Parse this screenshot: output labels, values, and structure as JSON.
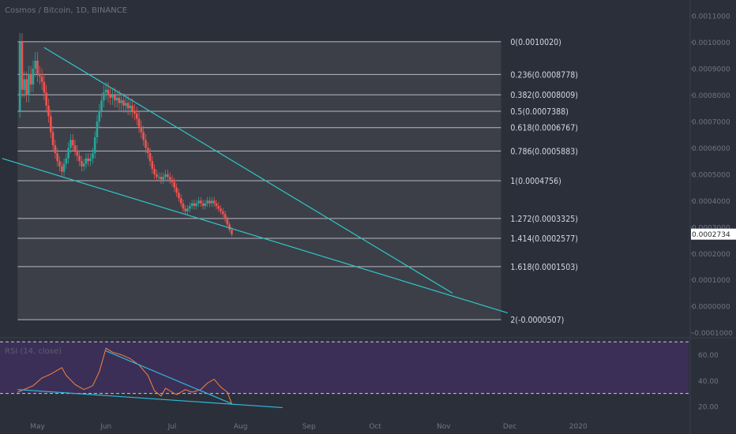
{
  "header": {
    "title": "Cosmos / Bitcoin, 1D, BINANCE"
  },
  "colors": {
    "background": "#2b2f3a",
    "fib_zone": "#3c3f48",
    "fib_line": "#b7bac2",
    "bull_candle": "#26a69a",
    "bear_candle": "#ef5350",
    "trendline": "#2fc7c9",
    "rsi_band": "#3b2f58",
    "rsi_line": "#f58534",
    "rsi_trendline": "#2fb8d8",
    "price_tag_bg": "#ffffff"
  },
  "chart_data": [
    {
      "type": "candlestick",
      "title": "Cosmos / Bitcoin, 1D, BINANCE",
      "y_axis": {
        "range": [
          -0.00011,
          0.00116
        ],
        "tick_labels": [
          "0.0011000",
          "0.0010000",
          "0.0009000",
          "0.0008000",
          "0.0007000",
          "0.0006000",
          "0.0005000",
          "0.0004000",
          "0.0003000",
          "0.0002000",
          "0.0001000",
          "0.0000000",
          "-0.0001000"
        ],
        "ticks": [
          0.0011,
          0.001,
          0.0009,
          0.0008,
          0.0007,
          0.0006,
          0.0005,
          0.0004,
          0.0003,
          0.0002,
          0.0001,
          0.0,
          -0.0001
        ]
      },
      "x_axis": {
        "labels": [
          "May",
          "Jun",
          "Jul",
          "Aug",
          "Sep",
          "Oct",
          "Nov",
          "Dec",
          "2020"
        ],
        "label_dates": [
          "2019-05-01",
          "2019-06-01",
          "2019-07-01",
          "2019-08-01",
          "2019-09-01",
          "2019-10-01",
          "2019-11-01",
          "2019-12-01",
          "2020-01-01"
        ],
        "range": [
          "2019-04-14",
          "2020-02-20"
        ]
      },
      "current_price": {
        "label": "0.0002734",
        "value": 0.0002734
      },
      "fib_retracement": {
        "start_date": "2019-04-22",
        "end_date": "2019-11-27",
        "levels": [
          {
            "ratio": 0,
            "price": 0.001002,
            "label": "0(0.0010020)"
          },
          {
            "ratio": 0.236,
            "price": 0.0008778,
            "label": "0.236(0.0008778)"
          },
          {
            "ratio": 0.382,
            "price": 0.0008009,
            "label": "0.382(0.0008009)"
          },
          {
            "ratio": 0.5,
            "price": 0.0007388,
            "label": "0.5(0.0007388)"
          },
          {
            "ratio": 0.618,
            "price": 0.0006767,
            "label": "0.618(0.0006767)"
          },
          {
            "ratio": 0.786,
            "price": 0.0005883,
            "label": "0.786(0.0005883)"
          },
          {
            "ratio": 1,
            "price": 0.0004756,
            "label": "1(0.0004756)"
          },
          {
            "ratio": 1.272,
            "price": 0.0003325,
            "label": "1.272(0.0003325)"
          },
          {
            "ratio": 1.414,
            "price": 0.0002577,
            "label": "1.414(0.0002577)"
          },
          {
            "ratio": 1.618,
            "price": 0.0001503,
            "label": "1.618(0.0001503)"
          },
          {
            "ratio": 2,
            "price": -5.07e-05,
            "label": "2(-0.0000507)"
          }
        ]
      },
      "trendlines": [
        {
          "name": "upper",
          "start": [
            "2019-05-04",
            0.00098
          ],
          "end": [
            "2019-11-05",
            5e-05
          ]
        },
        {
          "name": "lower",
          "start": [
            "2019-04-15",
            0.00056
          ],
          "end": [
            "2019-11-30",
            -2.5e-05
          ]
        }
      ],
      "ohlc_path": [
        [
          "2019-04-22",
          0.00074
        ],
        [
          "2019-04-23",
          0.001
        ],
        [
          "2019-04-24",
          0.00082
        ],
        [
          "2019-04-25",
          0.00086
        ],
        [
          "2019-04-26",
          0.0008
        ],
        [
          "2019-04-27",
          0.00088
        ],
        [
          "2019-04-28",
          0.00084
        ],
        [
          "2019-04-29",
          0.0009
        ],
        [
          "2019-04-30",
          0.00093
        ],
        [
          "2019-05-01",
          0.00088
        ],
        [
          "2019-05-02",
          0.00087
        ],
        [
          "2019-05-03",
          0.00085
        ],
        [
          "2019-05-04",
          0.00081
        ],
        [
          "2019-05-05",
          0.00076
        ],
        [
          "2019-05-06",
          0.00072
        ],
        [
          "2019-05-07",
          0.00066
        ],
        [
          "2019-05-08",
          0.00061
        ],
        [
          "2019-05-09",
          0.00058
        ],
        [
          "2019-05-10",
          0.00055
        ],
        [
          "2019-05-11",
          0.00053
        ],
        [
          "2019-05-12",
          0.00051
        ],
        [
          "2019-05-13",
          0.00054
        ],
        [
          "2019-05-14",
          0.00056
        ],
        [
          "2019-05-15",
          0.0006
        ],
        [
          "2019-05-16",
          0.00063
        ],
        [
          "2019-05-17",
          0.00061
        ],
        [
          "2019-05-18",
          0.00059
        ],
        [
          "2019-05-19",
          0.00057
        ],
        [
          "2019-05-20",
          0.00055
        ],
        [
          "2019-05-21",
          0.00053
        ],
        [
          "2019-05-22",
          0.00054
        ],
        [
          "2019-05-23",
          0.00056
        ],
        [
          "2019-05-24",
          0.00055
        ],
        [
          "2019-05-25",
          0.00056
        ],
        [
          "2019-05-26",
          0.00058
        ],
        [
          "2019-05-27",
          0.00064
        ],
        [
          "2019-05-28",
          0.0007
        ],
        [
          "2019-05-29",
          0.00074
        ],
        [
          "2019-05-30",
          0.00078
        ],
        [
          "2019-05-31",
          0.00081
        ],
        [
          "2019-06-01",
          0.00082
        ],
        [
          "2019-06-02",
          0.0008
        ],
        [
          "2019-06-03",
          0.00079
        ],
        [
          "2019-06-04",
          0.0008
        ],
        [
          "2019-06-05",
          0.00078
        ],
        [
          "2019-06-06",
          0.00079
        ],
        [
          "2019-06-07",
          0.00077
        ],
        [
          "2019-06-08",
          0.00078
        ],
        [
          "2019-06-09",
          0.00076
        ],
        [
          "2019-06-10",
          0.00077
        ],
        [
          "2019-06-11",
          0.00075
        ],
        [
          "2019-06-12",
          0.00076
        ],
        [
          "2019-06-13",
          0.00074
        ],
        [
          "2019-06-14",
          0.00073
        ],
        [
          "2019-06-15",
          0.00071
        ],
        [
          "2019-06-16",
          0.00068
        ],
        [
          "2019-06-17",
          0.00066
        ],
        [
          "2019-06-18",
          0.00063
        ],
        [
          "2019-06-19",
          0.0006
        ],
        [
          "2019-06-20",
          0.00058
        ],
        [
          "2019-06-21",
          0.00055
        ],
        [
          "2019-06-22",
          0.00052
        ],
        [
          "2019-06-23",
          0.0005
        ],
        [
          "2019-06-24",
          0.00049
        ],
        [
          "2019-06-25",
          0.00049
        ],
        [
          "2019-06-26",
          0.00048
        ],
        [
          "2019-06-27",
          0.00049
        ],
        [
          "2019-06-28",
          0.0005
        ],
        [
          "2019-06-29",
          0.00049
        ],
        [
          "2019-06-30",
          0.00048
        ],
        [
          "2019-07-01",
          0.00047
        ],
        [
          "2019-07-02",
          0.00045
        ],
        [
          "2019-07-03",
          0.00043
        ],
        [
          "2019-07-04",
          0.00041
        ],
        [
          "2019-07-05",
          0.00039
        ],
        [
          "2019-07-06",
          0.00037
        ],
        [
          "2019-07-07",
          0.00036
        ],
        [
          "2019-07-08",
          0.00037
        ],
        [
          "2019-07-09",
          0.00038
        ],
        [
          "2019-07-10",
          0.00039
        ],
        [
          "2019-07-11",
          0.00038
        ],
        [
          "2019-07-12",
          0.00039
        ],
        [
          "2019-07-13",
          0.0004
        ],
        [
          "2019-07-14",
          0.00039
        ],
        [
          "2019-07-15",
          0.00038
        ],
        [
          "2019-07-16",
          0.00039
        ],
        [
          "2019-07-17",
          0.0004
        ],
        [
          "2019-07-18",
          0.00039
        ],
        [
          "2019-07-19",
          0.0004
        ],
        [
          "2019-07-20",
          0.00039
        ],
        [
          "2019-07-21",
          0.00038
        ],
        [
          "2019-07-22",
          0.00037
        ],
        [
          "2019-07-23",
          0.00036
        ],
        [
          "2019-07-24",
          0.00035
        ],
        [
          "2019-07-25",
          0.00033
        ],
        [
          "2019-07-26",
          0.00031
        ],
        [
          "2019-07-27",
          0.00029
        ],
        [
          "2019-07-28",
          0.000273
        ]
      ]
    },
    {
      "type": "line",
      "title": "RSI (14, close)",
      "y_axis": {
        "range": [
          12,
          72
        ],
        "tick_labels": [
          "60.00",
          "40.00",
          "20.00"
        ],
        "ticks": [
          60,
          40,
          20
        ],
        "band": [
          30,
          70
        ]
      },
      "series": [
        {
          "name": "RSI (14, close)",
          "x": [
            "2019-04-22",
            "2019-04-29",
            "2019-05-03",
            "2019-05-07",
            "2019-05-12",
            "2019-05-14",
            "2019-05-18",
            "2019-05-22",
            "2019-05-26",
            "2019-05-29",
            "2019-06-01",
            "2019-06-04",
            "2019-06-08",
            "2019-06-12",
            "2019-06-16",
            "2019-06-20",
            "2019-06-23",
            "2019-06-26",
            "2019-06-28",
            "2019-07-01",
            "2019-07-03",
            "2019-07-07",
            "2019-07-10",
            "2019-07-14",
            "2019-07-17",
            "2019-07-20",
            "2019-07-23",
            "2019-07-26",
            "2019-07-28"
          ],
          "values": [
            31,
            36,
            42,
            45,
            50,
            44,
            37,
            33,
            36,
            47,
            65,
            62,
            60,
            57,
            52,
            44,
            32,
            28,
            34,
            31,
            29,
            33,
            31,
            33,
            38,
            41,
            35,
            31,
            22
          ]
        }
      ],
      "trendlines": [
        {
          "name": "rsi-upper",
          "start": [
            "2019-06-01",
            63
          ],
          "end": [
            "2019-07-28",
            22
          ]
        },
        {
          "name": "rsi-lower",
          "start": [
            "2019-04-22",
            33
          ],
          "end": [
            "2019-08-20",
            19
          ]
        }
      ]
    }
  ]
}
